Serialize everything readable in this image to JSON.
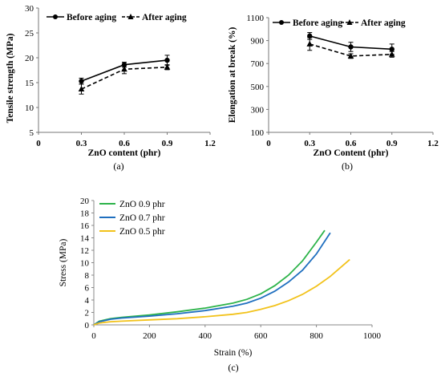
{
  "chart_data": [
    {
      "panel": "(a)",
      "type": "line",
      "xlabel": "ZnO content (phr)",
      "ylabel": "Tensile strength (MPa)",
      "xlim": [
        0,
        1.2
      ],
      "ylim": [
        5,
        30
      ],
      "xticks": [
        "0",
        "0.3",
        "0.6",
        "0.9",
        "1.2"
      ],
      "yticks": [
        "5",
        "10",
        "15",
        "20",
        "25",
        "30"
      ],
      "legend": "top, inside plot",
      "grid": false,
      "series": [
        {
          "name": "Before aging",
          "style": "solid",
          "marker": "circle",
          "x": [
            0.3,
            0.6,
            0.9
          ],
          "y": [
            15.3,
            18.6,
            19.5
          ],
          "err": [
            0.6,
            0.5,
            1.0
          ]
        },
        {
          "name": "After aging",
          "style": "dashed",
          "marker": "triangle",
          "x": [
            0.3,
            0.6,
            0.9
          ],
          "y": [
            13.7,
            17.7,
            18.1
          ],
          "err": [
            1.0,
            0.9,
            0.5
          ]
        }
      ]
    },
    {
      "panel": "(b)",
      "type": "line",
      "xlabel": "ZnO Content (phr)",
      "ylabel": "Elongation at break (%)",
      "xlim": [
        0,
        1.2
      ],
      "ylim": [
        100,
        1100
      ],
      "xticks": [
        "0",
        "0.3",
        "0.6",
        "0.9",
        "1.2"
      ],
      "yticks": [
        "100",
        "300",
        "500",
        "700",
        "900",
        "1100"
      ],
      "legend": "top, inside plot",
      "grid": false,
      "series": [
        {
          "name": "Before aging",
          "style": "solid",
          "marker": "circle",
          "x": [
            0.3,
            0.6,
            0.9
          ],
          "y": [
            940,
            845,
            825
          ],
          "err": [
            30,
            40,
            45
          ]
        },
        {
          "name": "After aging",
          "style": "dashed",
          "marker": "triangle",
          "x": [
            0.3,
            0.6,
            0.9
          ],
          "y": [
            870,
            765,
            780
          ],
          "err": [
            55,
            20,
            25
          ]
        }
      ]
    },
    {
      "panel": "(c)",
      "type": "line",
      "xlabel": "Strain (%)",
      "ylabel": "Stress (MPa)",
      "xlim": [
        0,
        1000
      ],
      "ylim": [
        0,
        20
      ],
      "xticks": [
        "0",
        "200",
        "400",
        "600",
        "800",
        "1000"
      ],
      "yticks": [
        "0",
        "2",
        "4",
        "6",
        "8",
        "10",
        "12",
        "14",
        "16",
        "18",
        "20"
      ],
      "legend": "top-left, inside plot",
      "grid": false,
      "series": [
        {
          "name": "ZnO 0.9 phr",
          "color": "#2db34a",
          "x": [
            0,
            20,
            60,
            100,
            200,
            300,
            400,
            500,
            550,
            600,
            650,
            700,
            750,
            800,
            830
          ],
          "y": [
            0,
            0.6,
            1.0,
            1.2,
            1.6,
            2.1,
            2.7,
            3.5,
            4.1,
            5.0,
            6.3,
            8.0,
            10.3,
            13.3,
            15.2
          ]
        },
        {
          "name": "ZnO 0.7 phr",
          "color": "#1f6fbf",
          "x": [
            0,
            20,
            60,
            100,
            200,
            300,
            400,
            500,
            550,
            600,
            650,
            700,
            750,
            800,
            850
          ],
          "y": [
            0,
            0.5,
            0.9,
            1.1,
            1.4,
            1.8,
            2.3,
            3.0,
            3.5,
            4.3,
            5.4,
            6.9,
            8.8,
            11.4,
            14.8
          ]
        },
        {
          "name": "ZnO 0.5 phr",
          "color": "#f2c21a",
          "x": [
            0,
            20,
            60,
            100,
            200,
            300,
            400,
            500,
            550,
            600,
            650,
            700,
            750,
            800,
            850,
            920
          ],
          "y": [
            0,
            0.3,
            0.5,
            0.6,
            0.8,
            1.0,
            1.3,
            1.7,
            2.0,
            2.5,
            3.1,
            3.9,
            4.9,
            6.2,
            7.8,
            10.5
          ]
        }
      ]
    }
  ]
}
